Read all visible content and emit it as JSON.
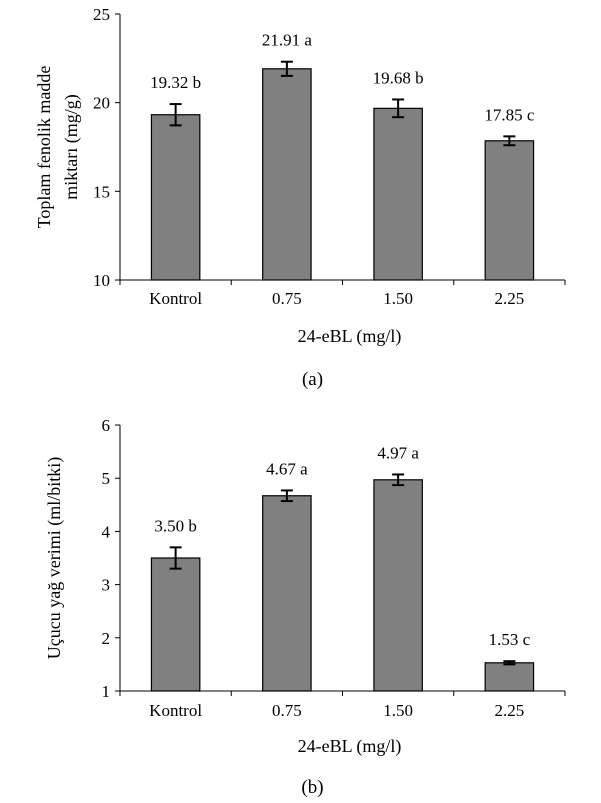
{
  "chart_data": [
    {
      "type": "bar",
      "panel_label": "(a)",
      "categories": [
        "Kontrol",
        "0.75",
        "1.50",
        "2.25"
      ],
      "values": [
        19.32,
        21.91,
        19.68,
        17.85
      ],
      "errors": [
        0.6,
        0.4,
        0.5,
        0.25
      ],
      "bar_labels": [
        "19.32 b",
        "21.91 a",
        "19.68 b",
        "17.85 c"
      ],
      "xlabel": "24-eBL (mg/l)",
      "ylabel_lines": [
        "Toplam fenolik madde",
        "miktarı (mg/g)"
      ],
      "ylim": [
        10,
        25
      ],
      "yticks": [
        10,
        15,
        20,
        25
      ],
      "ytick_labels": [
        "10",
        "15",
        "20",
        "25"
      ],
      "bar_color": "#808080",
      "grid": false
    },
    {
      "type": "bar",
      "panel_label": "(b)",
      "categories": [
        "Kontrol",
        "0.75",
        "1.50",
        "2.25"
      ],
      "values": [
        3.5,
        4.67,
        4.97,
        1.53
      ],
      "errors": [
        0.2,
        0.1,
        0.1,
        0.03
      ],
      "bar_labels": [
        "3.50 b",
        "4.67 a",
        "4.97 a",
        "1.53 c"
      ],
      "xlabel": "24-eBL (mg/l)",
      "ylabel_lines": [
        "Uçucu yağ verimi (ml/bitki)"
      ],
      "ylim": [
        1,
        6
      ],
      "yticks": [
        1,
        2,
        3,
        4,
        5,
        6
      ],
      "ytick_labels": [
        "1",
        "2",
        "3",
        "4",
        "5",
        "6"
      ],
      "bar_color": "#808080",
      "grid": false
    }
  ]
}
